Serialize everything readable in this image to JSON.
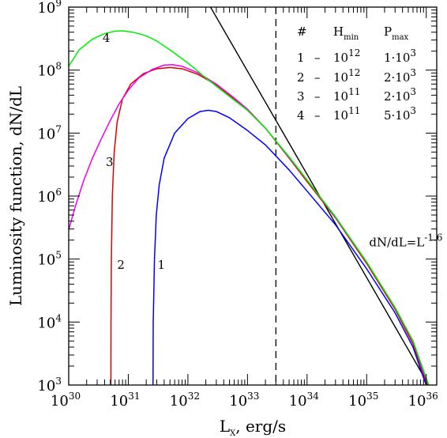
{
  "chart_data": {
    "type": "line",
    "xscale": "log",
    "yscale": "log",
    "xlim": [
      1e+30,
      1.5e+36
    ],
    "ylim": [
      1000.0,
      1000000000.0
    ],
    "xlabel": {
      "main": "L",
      "sub": "X",
      "rest": ", erg/s"
    },
    "ylabel": "Luminosity function, dN/dL",
    "x_ticks": [
      {
        "value": 1e+30,
        "base": "10",
        "exp": "30"
      },
      {
        "value": 1e+31,
        "base": "10",
        "exp": "31"
      },
      {
        "value": 1e+32,
        "base": "10",
        "exp": "32"
      },
      {
        "value": 1e+33,
        "base": "10",
        "exp": "33"
      },
      {
        "value": 1e+34,
        "base": "10",
        "exp": "34"
      },
      {
        "value": 1e+35,
        "base": "10",
        "exp": "35"
      },
      {
        "value": 1e+36,
        "base": "10",
        "exp": "36"
      }
    ],
    "y_ticks": [
      {
        "value": 1000.0,
        "base": "10",
        "exp": "3"
      },
      {
        "value": 10000.0,
        "base": "10",
        "exp": "4"
      },
      {
        "value": 100000.0,
        "base": "10",
        "exp": "5"
      },
      {
        "value": 1000000.0,
        "base": "10",
        "exp": "6"
      },
      {
        "value": 10000000.0,
        "base": "10",
        "exp": "7"
      },
      {
        "value": 100000000.0,
        "base": "10",
        "exp": "8"
      },
      {
        "value": 1000000000.0,
        "base": "10",
        "exp": "9"
      }
    ],
    "vline_x": 3e+33,
    "reference_line": {
      "points": [
        [
          2.4e+32,
          1000000000.0
        ],
        [
          1.1e+36,
          1000.0
        ]
      ],
      "label": {
        "main": "dN/dL=L",
        "exp": "-1.6"
      },
      "label_pos": [
        1.1e+35,
        160000.0
      ],
      "color": "#000000"
    },
    "series": [
      {
        "name": "1",
        "color": "#0000ff",
        "label_pos": [
          3.1e+31,
          70000.0
        ],
        "points": [
          [
            2.6e+31,
            1000.0
          ],
          [
            2.62e+31,
            10000.0
          ],
          [
            2.75e+31,
            100000.0
          ],
          [
            2.95e+31,
            500000.0
          ],
          [
            3.3e+31,
            1500000.0
          ],
          [
            4e+31,
            4000000.0
          ],
          [
            6e+31,
            10000000.0
          ],
          [
            1e+32,
            17000000.0
          ],
          [
            1.6e+32,
            22000000.0
          ],
          [
            2.2e+32,
            23000000.0
          ],
          [
            3e+32,
            22000000.0
          ],
          [
            5e+32,
            17500000.0
          ],
          [
            1e+33,
            11000000.0
          ],
          [
            2e+33,
            6500000.0
          ],
          [
            5e+33,
            2600000.0
          ],
          [
            1e+34,
            1200000.0
          ],
          [
            3e+34,
            350000.0
          ],
          [
            1e+35,
            70000.0
          ],
          [
            3e+35,
            14000.0
          ],
          [
            6e+35,
            4000.0
          ],
          [
            9e+35,
            1300.0
          ],
          [
            1e+36,
            1000.0
          ]
        ]
      },
      {
        "name": "2",
        "color": "#dd0000",
        "label_pos": [
          6.5e+30,
          70000.0
        ],
        "points": [
          [
            5.1e+30,
            1000.0
          ],
          [
            5.12e+30,
            10000.0
          ],
          [
            5.2e+30,
            100000.0
          ],
          [
            5.4e+30,
            1000000.0
          ],
          [
            5.8e+30,
            5000000.0
          ],
          [
            6.5e+30,
            15000000.0
          ],
          [
            8e+30,
            35000000.0
          ],
          [
            1.1e+31,
            60000000.0
          ],
          [
            1.8e+31,
            88000000.0
          ],
          [
            3e+31,
            105000000.0
          ],
          [
            5e+31,
            110000000.0
          ],
          [
            8e+31,
            105000000.0
          ],
          [
            1.5e+32,
            85000000.0
          ],
          [
            3e+32,
            58000000.0
          ],
          [
            6e+32,
            35000000.0
          ],
          [
            1e+33,
            23000000.0
          ],
          [
            2e+33,
            12000000.0
          ],
          [
            5e+33,
            4000000.0
          ],
          [
            1e+34,
            1700000.0
          ],
          [
            3e+34,
            450000.0
          ],
          [
            1e+35,
            85000.0
          ],
          [
            3e+35,
            16000.0
          ],
          [
            6e+35,
            4500.0
          ],
          [
            9e+35,
            1500.0
          ],
          [
            1.05e+36,
            1000.0
          ]
        ]
      },
      {
        "name": "3",
        "color": "#ee00ee",
        "label_pos": [
          4.2e+30,
          3000000.0
        ],
        "points": [
          [
            1e+30,
            290000.0
          ],
          [
            1.3e+30,
            700000.0
          ],
          [
            1.8e+30,
            1800000.0
          ],
          [
            2.5e+30,
            4000000.0
          ],
          [
            3.5e+30,
            8000000.0
          ],
          [
            5e+30,
            16000000.0
          ],
          [
            7e+30,
            29000000.0
          ],
          [
            1e+31,
            48000000.0
          ],
          [
            1.5e+31,
            75000000.0
          ],
          [
            2.5e+31,
            102000000.0
          ],
          [
            4e+31,
            120000000.0
          ],
          [
            5.5e+31,
            122000000.0
          ],
          [
            8e+31,
            115000000.0
          ],
          [
            1.5e+32,
            90000000.0
          ],
          [
            3e+32,
            60000000.0
          ],
          [
            6e+32,
            36000000.0
          ],
          [
            1e+33,
            24000000.0
          ],
          [
            2e+33,
            12000000.0
          ],
          [
            5e+33,
            4100000.0
          ],
          [
            1e+34,
            1800000.0
          ],
          [
            3e+34,
            460000.0
          ],
          [
            1e+35,
            90000.0
          ],
          [
            3e+35,
            17000.0
          ],
          [
            6e+35,
            5000.0
          ],
          [
            9e+35,
            1600.0
          ],
          [
            1.1e+36,
            1000.0
          ]
        ]
      },
      {
        "name": "4",
        "color": "#00ee00",
        "label_pos": [
          3.7e+30,
          280000000.0
        ],
        "points": [
          [
            1e+30,
            115000000.0
          ],
          [
            1.5e+30,
            210000000.0
          ],
          [
            2.5e+30,
            310000000.0
          ],
          [
            4e+30,
            380000000.0
          ],
          [
            6e+30,
            415000000.0
          ],
          [
            8e+30,
            420000000.0
          ],
          [
            1.2e+31,
            400000000.0
          ],
          [
            2e+31,
            350000000.0
          ],
          [
            3e+31,
            290000000.0
          ],
          [
            5e+31,
            210000000.0
          ],
          [
            1e+32,
            130000000.0
          ],
          [
            2e+32,
            75000000.0
          ],
          [
            5e+32,
            38000000.0
          ],
          [
            1e+33,
            23000000.0
          ],
          [
            2e+33,
            12000000.0
          ],
          [
            5e+33,
            4200000.0
          ],
          [
            1e+34,
            1800000.0
          ],
          [
            3e+34,
            470000.0
          ],
          [
            1e+35,
            90000.0
          ],
          [
            3e+35,
            17000.0
          ],
          [
            6e+35,
            5000.0
          ],
          [
            9e+35,
            1700.0
          ],
          [
            1.1e+36,
            1000.0
          ]
        ]
      }
    ],
    "table": {
      "headers": {
        "num": "#",
        "h": {
          "main": "H",
          "sub": "min"
        },
        "p": {
          "main": "P",
          "sub": "max"
        }
      },
      "rows": [
        {
          "num": "1",
          "dash": "–",
          "h_base": "10",
          "h_exp": "12",
          "p_mant": "1·10",
          "p_exp": "3"
        },
        {
          "num": "2",
          "dash": "–",
          "h_base": "10",
          "h_exp": "12",
          "p_mant": "2·10",
          "p_exp": "3"
        },
        {
          "num": "3",
          "dash": "–",
          "h_base": "10",
          "h_exp": "11",
          "p_mant": "2·10",
          "p_exp": "3"
        },
        {
          "num": "4",
          "dash": "–",
          "h_base": "10",
          "h_exp": "11",
          "p_mant": "5·10",
          "p_exp": "3"
        }
      ]
    }
  }
}
